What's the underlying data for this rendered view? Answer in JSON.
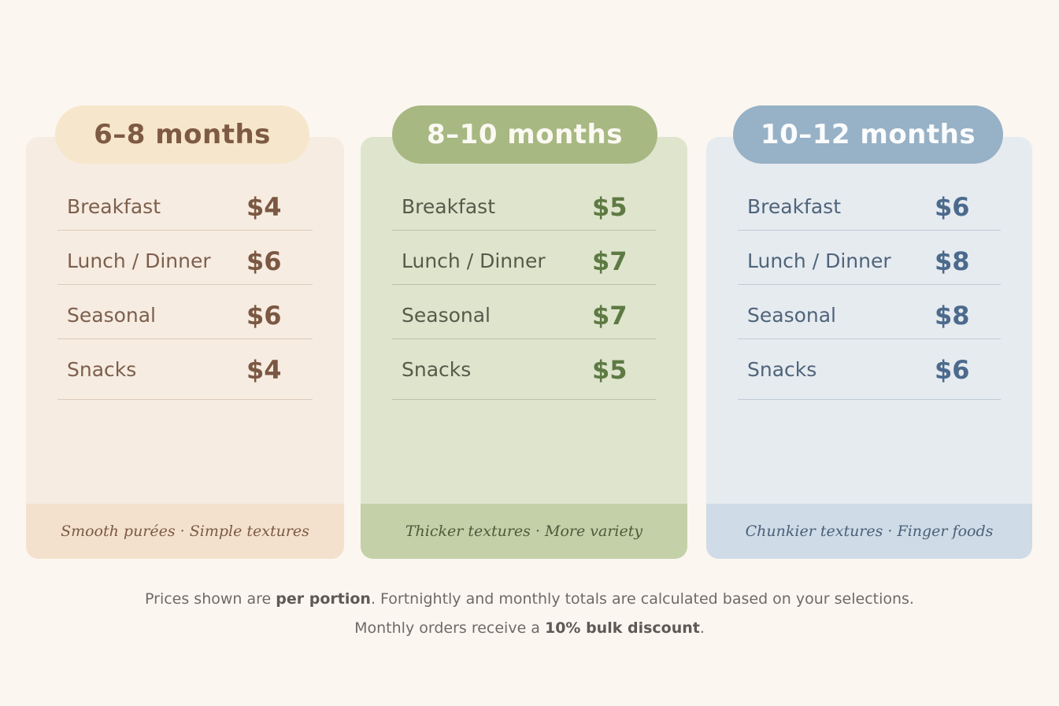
{
  "plans": [
    {
      "title": "6–8 months",
      "items": [
        {
          "label": "Breakfast",
          "price": "$4"
        },
        {
          "label": "Lunch / Dinner",
          "price": "$6"
        },
        {
          "label": "Seasonal",
          "price": "$6"
        },
        {
          "label": "Snacks",
          "price": "$4"
        }
      ],
      "footer": "Smooth purées · Simple textures",
      "colors": {
        "card": "#f7ece1",
        "title": "#f6e6cc",
        "accent": "#7b5842"
      }
    },
    {
      "title": "8–10 months",
      "items": [
        {
          "label": "Breakfast",
          "price": "$5"
        },
        {
          "label": "Lunch / Dinner",
          "price": "$7"
        },
        {
          "label": "Seasonal",
          "price": "$7"
        },
        {
          "label": "Snacks",
          "price": "$5"
        }
      ],
      "footer": "Thicker textures · More variety",
      "colors": {
        "card": "#dfe5cd",
        "title": "#a7b883",
        "accent": "#5e7a44"
      }
    },
    {
      "title": "10–12 months",
      "items": [
        {
          "label": "Breakfast",
          "price": "$6"
        },
        {
          "label": "Lunch / Dinner",
          "price": "$8"
        },
        {
          "label": "Seasonal",
          "price": "$8"
        },
        {
          "label": "Snacks",
          "price": "$6"
        }
      ],
      "footer": "Chunkier textures · Finger foods",
      "colors": {
        "card": "#e6ebf0",
        "title": "#97b1c6",
        "accent": "#4b6a8c"
      }
    }
  ],
  "note": {
    "line1_pre": "Prices shown are ",
    "line1_bold": "per portion",
    "line1_post": ". Fortnightly and monthly totals are calculated based on your selections.",
    "line2_pre": "Monthly orders receive a ",
    "line2_bold": "10% bulk discount",
    "line2_post": "."
  }
}
